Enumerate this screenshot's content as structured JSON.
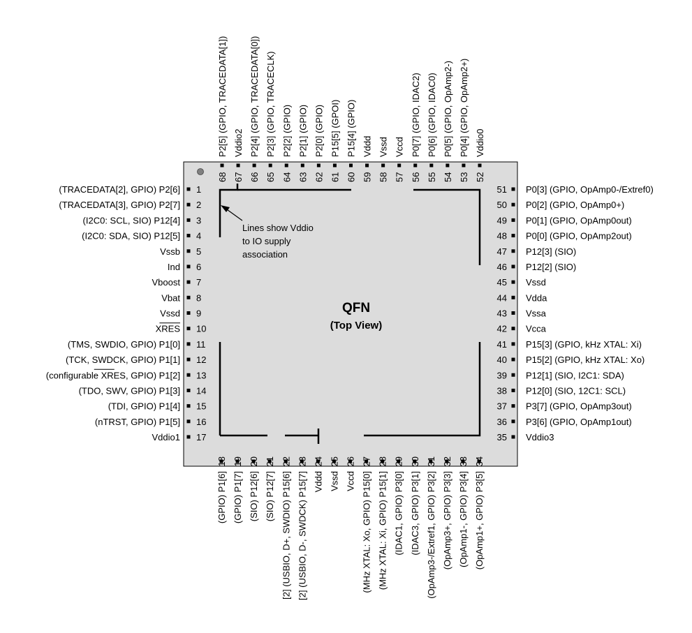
{
  "title": "QFN",
  "subtitle": "(Top View)",
  "annotation": [
    "Lines show Vddio",
    "to IO supply",
    "association"
  ],
  "left_pins": [
    {
      "num": "1",
      "label": "(TRACEDATA[2], GPIO) P2[6]"
    },
    {
      "num": "2",
      "label": "(TRACEDATA[3], GPIO) P2[7]"
    },
    {
      "num": "3",
      "label": "(I2C0: SCL, SIO) P12[4]"
    },
    {
      "num": "4",
      "label": "(I2C0: SDA, SIO) P12[5]"
    },
    {
      "num": "5",
      "label": "Vssb"
    },
    {
      "num": "6",
      "label": "Ind"
    },
    {
      "num": "7",
      "label": "Vboost"
    },
    {
      "num": "8",
      "label": "Vbat"
    },
    {
      "num": "9",
      "label": "Vssd"
    },
    {
      "num": "10",
      "label": "XRES",
      "overline": true
    },
    {
      "num": "11",
      "label": "(TMS, SWDIO, GPIO) P1[0]"
    },
    {
      "num": "12",
      "label": "(TCK, SWDCK, GPIO) P1[1]"
    },
    {
      "num": "13",
      "label": "(configurable XRES, GPIO) P1[2]",
      "overline_word": "XRES"
    },
    {
      "num": "14",
      "label": "(TDO, SWV, GPIO) P1[3]"
    },
    {
      "num": "15",
      "label": "(TDI, GPIO) P1[4]"
    },
    {
      "num": "16",
      "label": "(nTRST, GPIO) P1[5]"
    },
    {
      "num": "17",
      "label": "Vddio1"
    }
  ],
  "bottom_pins": [
    {
      "num": "18",
      "label": "(GPIO) P1[6]"
    },
    {
      "num": "19",
      "label": "(GPIO) P1[7]"
    },
    {
      "num": "20",
      "label": "(SIO) P12[6]"
    },
    {
      "num": "21",
      "label": "(SIO) P12[7]"
    },
    {
      "num": "22",
      "label": "[2] (USBIO, D+, SWDIO) P15[6]"
    },
    {
      "num": "23",
      "label": "[2] (USBIO, D-, SWDCK) P15[7]"
    },
    {
      "num": "24",
      "label": "Vddd"
    },
    {
      "num": "25",
      "label": "Vssd"
    },
    {
      "num": "26",
      "label": "Vccd"
    },
    {
      "num": "27",
      "label": "(MHz XTAL: Xo, GPIO) P15[0]"
    },
    {
      "num": "28",
      "label": "(MHz XTAL: Xi, GPIO) P15[1]"
    },
    {
      "num": "29",
      "label": "(IDAC1, GPIO) P3[0]"
    },
    {
      "num": "30",
      "label": "(IDAC3, GPIO) P3[1]"
    },
    {
      "num": "31",
      "label": "(OpAmp3-/Extref1, GPIO) P3[2]"
    },
    {
      "num": "32",
      "label": "(OpAmp3+, GPIO) P3[3]"
    },
    {
      "num": "33",
      "label": "(OpAmp1-, GPIO) P3[4]"
    },
    {
      "num": "34",
      "label": "(OpAmp1+, GPIO) P3[5]"
    }
  ],
  "right_pins": [
    {
      "num": "35",
      "label": "Vddio3"
    },
    {
      "num": "36",
      "label": "P3[6] (GPIO, OpAmp1out)"
    },
    {
      "num": "37",
      "label": "P3[7] (GPIO, OpAmp3out)"
    },
    {
      "num": "38",
      "label": "P12[0] (SIO, 12C1: SCL)"
    },
    {
      "num": "39",
      "label": "P12[1] (SIO, I2C1: SDA)"
    },
    {
      "num": "40",
      "label": "P15[2] (GPIO, kHz XTAL: Xo)"
    },
    {
      "num": "41",
      "label": "P15[3] (GPIO, kHz XTAL: Xi)"
    },
    {
      "num": "42",
      "label": "Vcca"
    },
    {
      "num": "43",
      "label": "Vssa"
    },
    {
      "num": "44",
      "label": "Vdda"
    },
    {
      "num": "45",
      "label": "Vssd"
    },
    {
      "num": "46",
      "label": "P12[2] (SIO)"
    },
    {
      "num": "47",
      "label": "P12[3] (SIO)"
    },
    {
      "num": "48",
      "label": "P0[0] (GPIO, OpAmp2out)"
    },
    {
      "num": "49",
      "label": "P0[1] (GPIO, OpAmp0out)"
    },
    {
      "num": "50",
      "label": "P0[2] (GPIO, OpAmp0+)"
    },
    {
      "num": "51",
      "label": "P0[3] (GPIO, OpAmp0-/Extref0)"
    }
  ],
  "top_pins": [
    {
      "num": "52",
      "label": "Vddio0"
    },
    {
      "num": "53",
      "label": "P0[4] (GPIO, OpAmp2+)"
    },
    {
      "num": "54",
      "label": "P0[5] (GPIO, OpAmp2-)"
    },
    {
      "num": "55",
      "label": "P0[6] (GPIO, IDAC0)"
    },
    {
      "num": "56",
      "label": "P0[7] (GPIO, IDAC2)"
    },
    {
      "num": "57",
      "label": "Vccd"
    },
    {
      "num": "58",
      "label": "Vssd"
    },
    {
      "num": "59",
      "label": "Vddd"
    },
    {
      "num": "60",
      "label": "P15[4] (GPIO)"
    },
    {
      "num": "61",
      "label": "P15[5] (GPOI)"
    },
    {
      "num": "62",
      "label": "P2[0] (GPIO)"
    },
    {
      "num": "63",
      "label": "P2[1] (GPIO)"
    },
    {
      "num": "64",
      "label": "P2[2] (GPIO)"
    },
    {
      "num": "65",
      "label": "P2[3] (GPIO, TRACECLK)"
    },
    {
      "num": "66",
      "label": "P2[4] (GPIO, TRACEDATA[0])"
    },
    {
      "num": "67",
      "label": "Vddio2"
    },
    {
      "num": "68",
      "label": "P2[5] (GPIO, TRACEDATA[1])"
    }
  ],
  "colors": {
    "body": "#dcdcdc",
    "line": "#000000",
    "dot": "#808080"
  }
}
